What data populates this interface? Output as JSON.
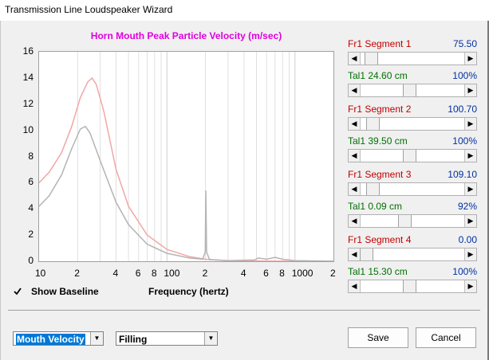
{
  "window": {
    "title": "Transmission Line Loudspeaker Wizard"
  },
  "chart_data": {
    "type": "line",
    "title": "Horn Mouth Peak Particle Velocity (m/sec)",
    "xlabel": "Frequency (hertz)",
    "ylabel": "",
    "x_scale": "log",
    "xlim": [
      10,
      2000
    ],
    "ylim": [
      0,
      16
    ],
    "y_ticks": [
      "0",
      "2",
      "4",
      "6",
      "8",
      "10",
      "12",
      "14",
      "16"
    ],
    "x_ticks": [
      "10",
      "2",
      "4",
      "6",
      "8",
      "100",
      "2",
      "4",
      "6",
      "8",
      "1000",
      "2"
    ],
    "grid": true,
    "series": [
      {
        "color": "#f2a6a6",
        "points": [
          [
            10,
            6.0
          ],
          [
            12,
            6.8
          ],
          [
            15,
            8.3
          ],
          [
            18,
            10.3
          ],
          [
            21,
            12.5
          ],
          [
            24,
            13.7
          ],
          [
            26,
            14.0
          ],
          [
            28,
            13.5
          ],
          [
            32,
            11.5
          ],
          [
            40,
            7.0
          ],
          [
            50,
            4.2
          ],
          [
            70,
            2.0
          ],
          [
            100,
            0.9
          ],
          [
            150,
            0.35
          ],
          [
            200,
            0.15
          ],
          [
            300,
            0.05
          ],
          [
            500,
            0.02
          ],
          [
            1000,
            0.0
          ],
          [
            2000,
            0.0
          ]
        ]
      },
      {
        "color": "#b4b4b4",
        "points": [
          [
            10,
            4.2
          ],
          [
            12,
            5.0
          ],
          [
            15,
            6.6
          ],
          [
            18,
            8.6
          ],
          [
            21,
            10.1
          ],
          [
            23,
            10.3
          ],
          [
            25,
            9.8
          ],
          [
            30,
            7.7
          ],
          [
            40,
            4.5
          ],
          [
            50,
            2.8
          ],
          [
            70,
            1.3
          ],
          [
            100,
            0.6
          ],
          [
            150,
            0.25
          ],
          [
            190,
            0.15
          ],
          [
            199,
            0.7
          ],
          [
            201,
            5.4
          ],
          [
            204,
            0.7
          ],
          [
            215,
            0.12
          ],
          [
            300,
            0.05
          ],
          [
            480,
            0.1
          ],
          [
            520,
            0.25
          ],
          [
            600,
            0.15
          ],
          [
            700,
            0.3
          ],
          [
            800,
            0.15
          ],
          [
            1000,
            0.05
          ],
          [
            2000,
            0.0
          ]
        ]
      }
    ]
  },
  "baseline": {
    "label": "Show Baseline",
    "checked": true
  },
  "segments": [
    {
      "fr_label": "Fr1  Segment 1",
      "fr_value": "75.50",
      "fr_pos": 0.05,
      "tal_label": "Tal1  24.60 cm",
      "tal_value": "100%",
      "tal_pos": 0.47
    },
    {
      "fr_label": "Fr1  Segment 2",
      "fr_value": "100.70",
      "fr_pos": 0.07,
      "tal_label": "Tal1  39.50 cm",
      "tal_value": "100%",
      "tal_pos": 0.47
    },
    {
      "fr_label": "Fr1  Segment 3",
      "fr_value": "109.10",
      "fr_pos": 0.07,
      "tal_label": "Tal1  0.09 cm",
      "tal_value": "92%",
      "tal_pos": 0.42
    },
    {
      "fr_label": "Fr1  Segment 4",
      "fr_value": "0.00",
      "fr_pos": 0.0,
      "tal_label": "Tal1  15.30 cm",
      "tal_value": "100%",
      "tal_pos": 0.47
    }
  ],
  "colors": {
    "fr": "#c00000",
    "tal": "#007000",
    "value": "#0030a0",
    "title": "#e000e0"
  },
  "controls": {
    "view_select": "Mouth Velocity",
    "mode_select": "Filling",
    "save_label": "Save",
    "cancel_label": "Cancel"
  }
}
